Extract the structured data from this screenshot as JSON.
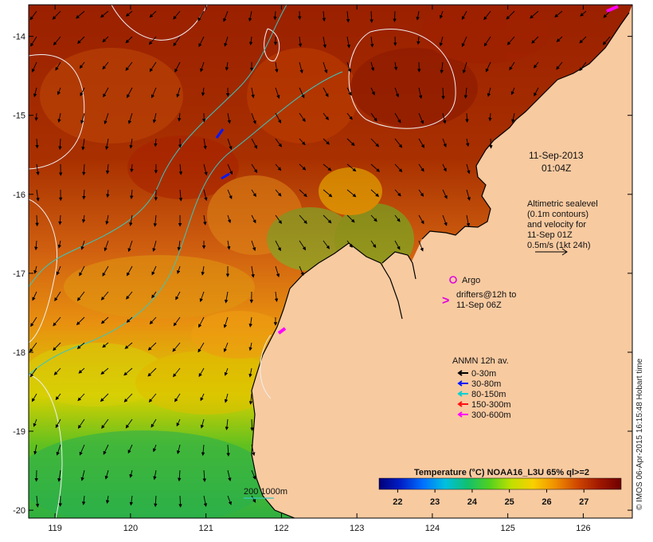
{
  "title_block": {
    "date": "11-Sep-2013",
    "time": "01:04Z"
  },
  "altimetry_note": {
    "lines": [
      "Altimetric sealevel",
      "(0.1m contours)",
      "and velocity for",
      "11-Sep 01Z",
      "0.5m/s (1kt 24h)"
    ]
  },
  "argo": {
    "label": "Argo",
    "color": "#e000e0"
  },
  "drifters": {
    "lines": [
      "drifters@12h to",
      "11-Sep 06Z"
    ],
    "symbol": ">",
    "color": "#e000e0"
  },
  "anmn": {
    "title": "ANMN 12h av.",
    "items": [
      {
        "label": "0-30m",
        "color": "#000000"
      },
      {
        "label": "30-80m",
        "color": "#0018ff"
      },
      {
        "label": "80-150m",
        "color": "#00d0d0"
      },
      {
        "label": "150-300m",
        "color": "#ff1010"
      },
      {
        "label": "300-600m",
        "color": "#ff00ff"
      }
    ]
  },
  "isobath": {
    "label": "200  1000m",
    "color": "#38c8c0"
  },
  "colorbar": {
    "title": "Temperature (°C) NOAA16_L3U 65% ql>=2",
    "ticks": [
      "22",
      "23",
      "24",
      "25",
      "26",
      "27"
    ],
    "range": [
      21.5,
      28.0
    ],
    "colors": [
      "#00007a",
      "#0020c8",
      "#0070ff",
      "#00c0e0",
      "#10c070",
      "#50d020",
      "#c0e000",
      "#f8d000",
      "#f09000",
      "#d04800",
      "#a01800",
      "#700000"
    ]
  },
  "axes": {
    "lon_ticks": [
      "119",
      "120",
      "121",
      "122",
      "123",
      "124",
      "125",
      "126"
    ],
    "lat_ticks": [
      "-14",
      "-15",
      "-16",
      "-17",
      "-18",
      "-19",
      "-20"
    ],
    "lon_range": [
      118.65,
      126.65
    ],
    "lat_range": [
      -20.1,
      -13.6
    ]
  },
  "colors": {
    "land": "#f8caa0",
    "frame": "#000000",
    "contour": "#f0f0f0"
  },
  "credit": "© IMOS 06-Apr-2015 16:15:48 Hobart time"
}
